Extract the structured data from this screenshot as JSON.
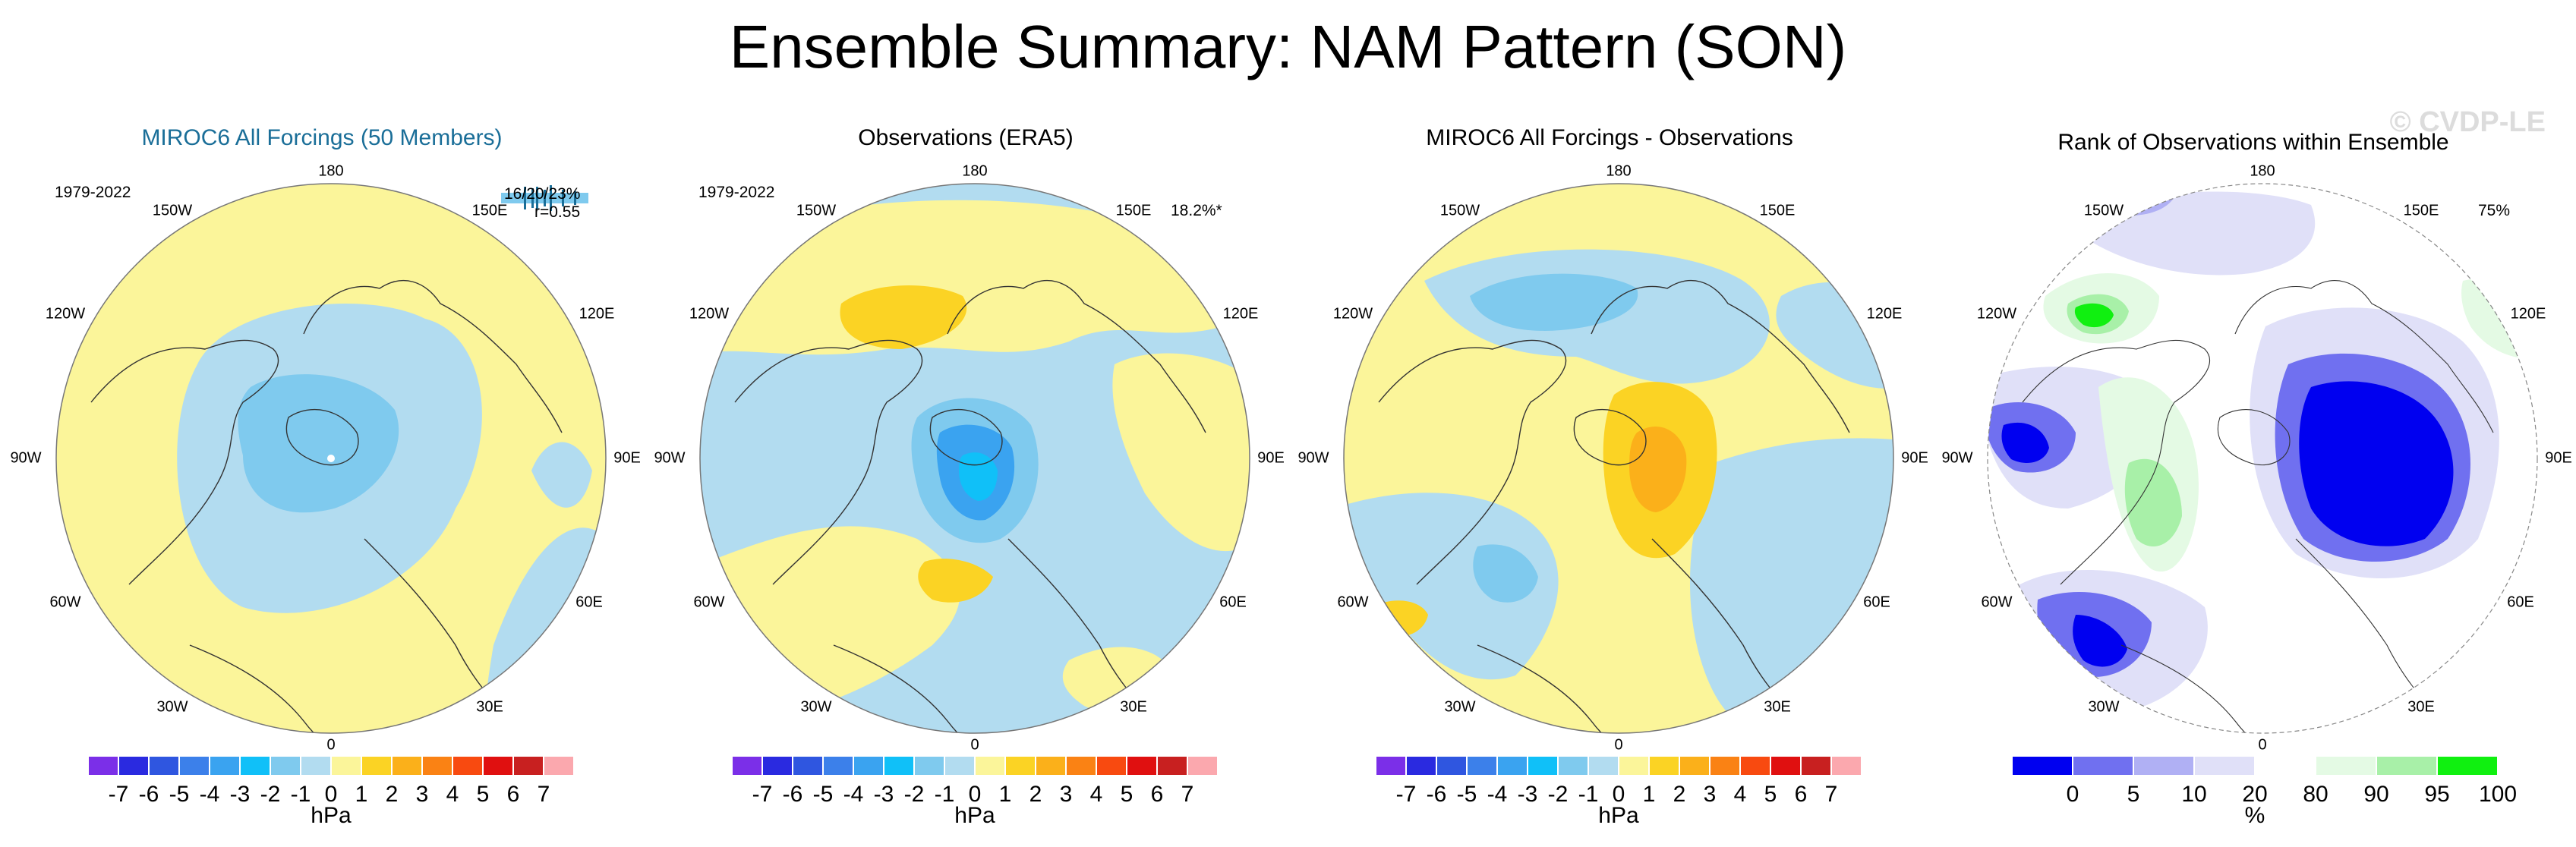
{
  "title": "Ensemble Summary: NAM Pattern (SON)",
  "watermark": "© CVDP-LE",
  "longitude_labels": [
    "180",
    "150E",
    "120E",
    "90E",
    "60E",
    "30E",
    "0",
    "30W",
    "60W",
    "90W",
    "120W",
    "150W"
  ],
  "panels": [
    {
      "title": "MIROC6 All Forcings (50 Members)",
      "years": "1979-2022",
      "stat_line1": "16/20/23%",
      "stat_line2": "r=0.55"
    },
    {
      "title": "Observations (ERA5)",
      "years": "1979-2022",
      "stat": "18.2%*"
    },
    {
      "title": "MIROC6 All Forcings - Observations"
    },
    {
      "title": "Rank of Observations within Ensemble",
      "stat": "75%"
    }
  ],
  "pressure_colorbar": {
    "colors": [
      "#7b2fe8",
      "#2a2ae0",
      "#2f56e0",
      "#3c80ea",
      "#3aa3f0",
      "#10c0f8",
      "#7fcaee",
      "#b2dcf0",
      "#fbf59a",
      "#fbd324",
      "#fbb01a",
      "#fa8214",
      "#f84a10",
      "#e01010",
      "#c82020",
      "#fba8ae"
    ],
    "labels": [
      "-7",
      "-6",
      "-5",
      "-4",
      "-3",
      "-2",
      "-1",
      "0",
      "1",
      "2",
      "3",
      "4",
      "5",
      "6",
      "7"
    ],
    "unit": "hPa"
  },
  "rank_colorbar": {
    "colors": [
      "#0000f0",
      "#7070f0",
      "#b0b0f4",
      "#e0e0f8",
      "#ffffff",
      "#e4fae4",
      "#a8f0a8",
      "#10f010"
    ],
    "labels": [
      "0",
      "5",
      "10",
      "20",
      "80",
      "90",
      "95",
      "100"
    ],
    "unit": "%"
  }
}
